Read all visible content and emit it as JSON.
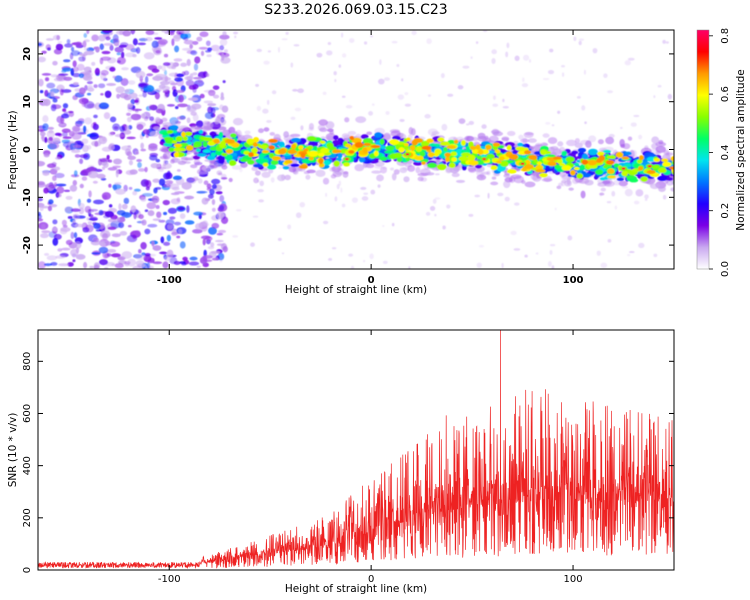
{
  "title": "S233.2026.069.03.15.C23",
  "colors": {
    "snr_line": "#ee2222",
    "axis": "#000000",
    "background": "#ffffff"
  },
  "colorbar": {
    "label": "Normalized spectral amplitude",
    "range": [
      0.0,
      0.82
    ],
    "tick_labels": [
      "0.0",
      "0.2",
      "0.4",
      "0.6",
      "0.8"
    ],
    "tick_values": [
      0.0,
      0.2,
      0.4,
      0.6,
      0.8
    ],
    "stops": [
      "#ffffff",
      "#c9a8f0",
      "#7a00e6",
      "#2200ff",
      "#0077ff",
      "#00e5ee",
      "#00ff66",
      "#88ff00",
      "#ffff00",
      "#ff9900",
      "#ff0000",
      "#ff0066"
    ]
  },
  "chart_data": [
    {
      "type": "heatmap",
      "xlabel": "Height of straight line (km)",
      "ylabel": "Frequency (Hz)",
      "xlim": [
        -165,
        150
      ],
      "ylim": [
        -25,
        25
      ],
      "x_tick_labels": [
        "-100",
        "0",
        "100"
      ],
      "x_ticks": [
        -100,
        0,
        100
      ],
      "y_tick_labels": [
        "20",
        "10",
        "0",
        "-10",
        "-20"
      ],
      "y_ticks": [
        20,
        10,
        0,
        -10,
        -20
      ],
      "description_values": {
        "noise_region_km": [
          -165,
          -80
        ],
        "signal_band_center_hz": [
          [
            -100,
            2
          ],
          [
            -50,
            -1
          ],
          [
            0,
            0
          ],
          [
            50,
            -1
          ],
          [
            100,
            -3
          ],
          [
            145,
            -4
          ]
        ],
        "peak_amplitude": 0.82
      }
    },
    {
      "type": "line",
      "xlabel": "Height of straight line (km)",
      "ylabel": "SNR (10 * v/v)",
      "xlim": [
        -165,
        150
      ],
      "ylim": [
        0,
        920
      ],
      "x_tick_labels": [
        "-100",
        "0",
        "100"
      ],
      "x_ticks": [
        -100,
        0,
        100
      ],
      "y_tick_labels": [
        "0",
        "200",
        "400",
        "600",
        "800"
      ],
      "y_ticks": [
        0,
        200,
        400,
        600,
        800
      ],
      "envelope": {
        "x": [
          -165,
          -120,
          -90,
          -80,
          -60,
          -40,
          -20,
          -5,
          10,
          30,
          40,
          60,
          80,
          100,
          120,
          150
        ],
        "baseline": [
          20,
          20,
          22,
          28,
          50,
          70,
          90,
          130,
          170,
          210,
          230,
          250,
          260,
          260,
          260,
          260
        ],
        "peak": [
          35,
          35,
          45,
          60,
          110,
          160,
          220,
          320,
          420,
          560,
          620,
          650,
          700,
          680,
          640,
          580
        ]
      },
      "max_point": [
        64,
        920
      ]
    }
  ]
}
